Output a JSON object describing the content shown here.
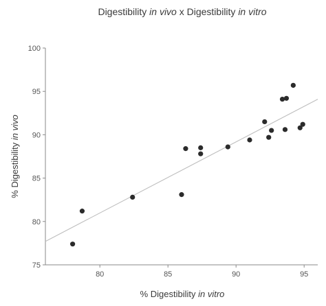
{
  "chart_data": {
    "type": "scatter",
    "title": {
      "parts": [
        {
          "text": "Digestibility ",
          "italic": false
        },
        {
          "text": "in vivo",
          "italic": true
        },
        {
          "text": " x Digestibility ",
          "italic": false
        },
        {
          "text": "in vitro",
          "italic": true
        }
      ]
    },
    "xlabel": {
      "parts": [
        {
          "text": "% Digestibility ",
          "italic": false
        },
        {
          "text": "in vitro",
          "italic": true
        }
      ]
    },
    "ylabel": {
      "parts": [
        {
          "text": "% Digestibility ",
          "italic": false
        },
        {
          "text": "in vivo",
          "italic": true
        }
      ]
    },
    "xlim": [
      76,
      96
    ],
    "ylim": [
      75,
      100
    ],
    "x_ticks": [
      "80",
      "85",
      "90",
      "95"
    ],
    "y_ticks": [
      "75",
      "80",
      "85",
      "90",
      "95",
      "100"
    ],
    "grid": false,
    "points": [
      {
        "x": 78.0,
        "y": 77.4
      },
      {
        "x": 78.7,
        "y": 81.2
      },
      {
        "x": 82.4,
        "y": 82.8
      },
      {
        "x": 86.0,
        "y": 83.1
      },
      {
        "x": 86.3,
        "y": 88.4
      },
      {
        "x": 87.4,
        "y": 88.5
      },
      {
        "x": 87.4,
        "y": 87.8
      },
      {
        "x": 89.4,
        "y": 88.6
      },
      {
        "x": 91.0,
        "y": 89.4
      },
      {
        "x": 92.1,
        "y": 91.5
      },
      {
        "x": 92.4,
        "y": 89.7
      },
      {
        "x": 92.6,
        "y": 90.5
      },
      {
        "x": 93.4,
        "y": 94.1
      },
      {
        "x": 93.6,
        "y": 90.6
      },
      {
        "x": 93.7,
        "y": 94.2
      },
      {
        "x": 94.2,
        "y": 95.7
      },
      {
        "x": 94.7,
        "y": 90.8
      },
      {
        "x": 94.9,
        "y": 91.2
      }
    ],
    "trendline": {
      "x": [
        76,
        96
      ],
      "y": [
        77.7,
        94.1
      ]
    }
  }
}
